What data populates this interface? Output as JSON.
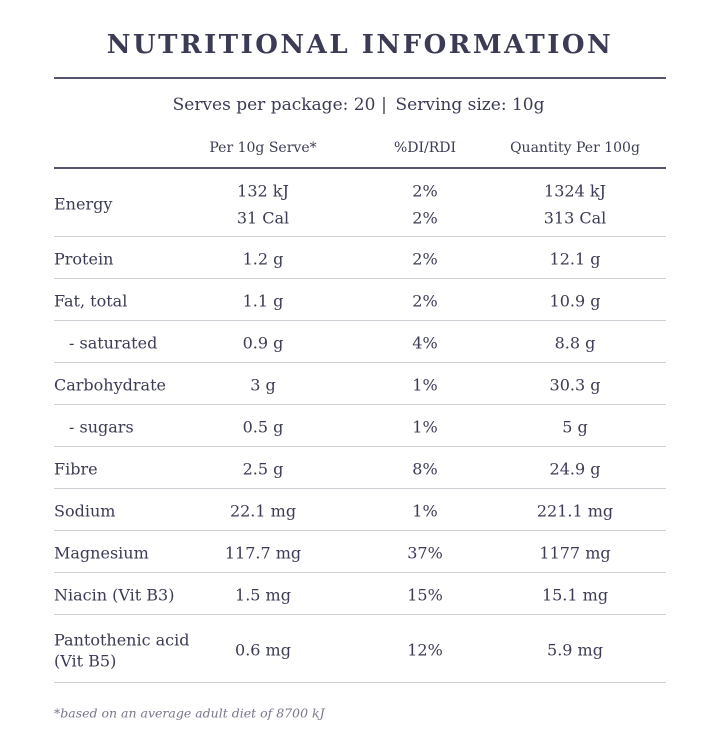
{
  "header": {
    "title": "NUTRITIONAL INFORMATION",
    "serves": "Serves per package: 20",
    "separator": "|",
    "serving_size": "Serving size: 10g"
  },
  "table": {
    "columns": [
      "Per 10g Serve*",
      "%DI/RDI",
      "Quantity Per 100g"
    ],
    "rows": [
      {
        "name": [
          "Energy"
        ],
        "serve": [
          "132 kJ",
          "31 Cal"
        ],
        "di": [
          "2%",
          "2%"
        ],
        "per100": [
          "1324 kJ",
          "313 Cal"
        ]
      },
      {
        "name": [
          "Protein"
        ],
        "serve": [
          "1.2 g"
        ],
        "di": [
          "2%"
        ],
        "per100": [
          "12.1 g"
        ]
      },
      {
        "name": [
          "Fat, total"
        ],
        "serve": [
          "1.1 g"
        ],
        "di": [
          "2%"
        ],
        "per100": [
          "10.9 g"
        ]
      },
      {
        "name": [
          "- saturated"
        ],
        "sub": true,
        "serve": [
          "0.9 g"
        ],
        "di": [
          "4%"
        ],
        "per100": [
          "8.8 g"
        ]
      },
      {
        "name": [
          "Carbohydrate"
        ],
        "serve": [
          "3 g"
        ],
        "di": [
          "1%"
        ],
        "per100": [
          "30.3 g"
        ]
      },
      {
        "name": [
          "- sugars"
        ],
        "sub": true,
        "serve": [
          "0.5 g"
        ],
        "di": [
          "1%"
        ],
        "per100": [
          "5 g"
        ]
      },
      {
        "name": [
          "Fibre"
        ],
        "serve": [
          "2.5 g"
        ],
        "di": [
          "8%"
        ],
        "per100": [
          "24.9 g"
        ]
      },
      {
        "name": [
          "Sodium"
        ],
        "serve": [
          "22.1 mg"
        ],
        "di": [
          "1%"
        ],
        "per100": [
          "221.1 mg"
        ]
      },
      {
        "name": [
          "Magnesium"
        ],
        "serve": [
          "117.7 mg"
        ],
        "di": [
          "37%"
        ],
        "per100": [
          "1177 mg"
        ]
      },
      {
        "name": [
          "Niacin (Vit B3)"
        ],
        "serve": [
          "1.5 mg"
        ],
        "di": [
          "15%"
        ],
        "per100": [
          "15.1 mg"
        ]
      },
      {
        "name": [
          "Pantothenic acid",
          "(Vit B5)"
        ],
        "serve": [
          "0.6 mg"
        ],
        "di": [
          "12%"
        ],
        "per100": [
          "5.9 mg"
        ]
      }
    ]
  },
  "footnote": "*based on an average adult diet of 8700 kJ"
}
